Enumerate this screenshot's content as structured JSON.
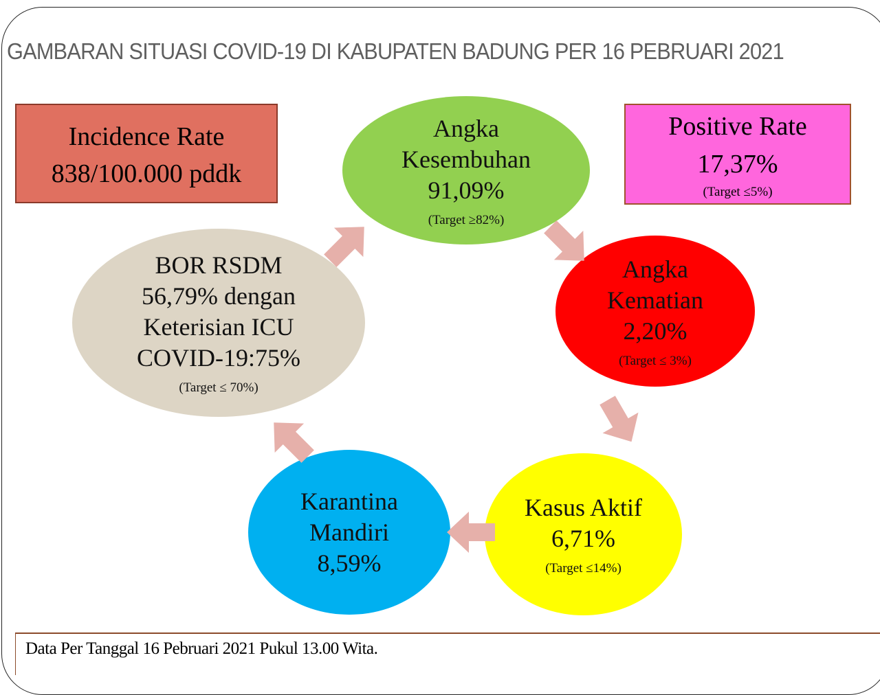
{
  "title": "GAMBARAN SITUASI COVID-19 DI KABUPATEN BADUNG PER 16 PEBRUARI 2021",
  "incidence": {
    "line1": "Incidence Rate",
    "line2": "838/100.000 pddk",
    "color": "#e07060"
  },
  "positive": {
    "line1": "Positive Rate",
    "line2": "17,37%",
    "target": "(Target ≤5%)",
    "color": "#ff66dd"
  },
  "kesembuhan": {
    "line1": "Angka",
    "line2": "Kesembuhan",
    "value": "91,09%",
    "target": "(Target ≥82%)",
    "color": "#92d050"
  },
  "kematian": {
    "line1": "Angka",
    "line2": "Kematian",
    "value": "2,20%",
    "target": "(Target ≤ 3%)",
    "color": "#ff0000"
  },
  "aktif": {
    "line1": "Kasus Aktif",
    "value": "6,71%",
    "target": "(Target ≤14%)",
    "color": "#ffff00"
  },
  "karantina": {
    "line1": "Karantina",
    "line2": "Mandiri",
    "value": "8,59%",
    "color": "#00b0f0"
  },
  "bor": {
    "line1": "BOR RSDM",
    "line2": "56,79% dengan",
    "line3": "Keterisian ICU",
    "line4": "COVID-19:75%",
    "target": "(Target ≤ 70%)",
    "color": "#ddd5c5"
  },
  "arrow_color": "#e6b0aa",
  "footer": "Data Per Tanggal 16 Pebruari 2021 Pukul 13.00 Wita."
}
